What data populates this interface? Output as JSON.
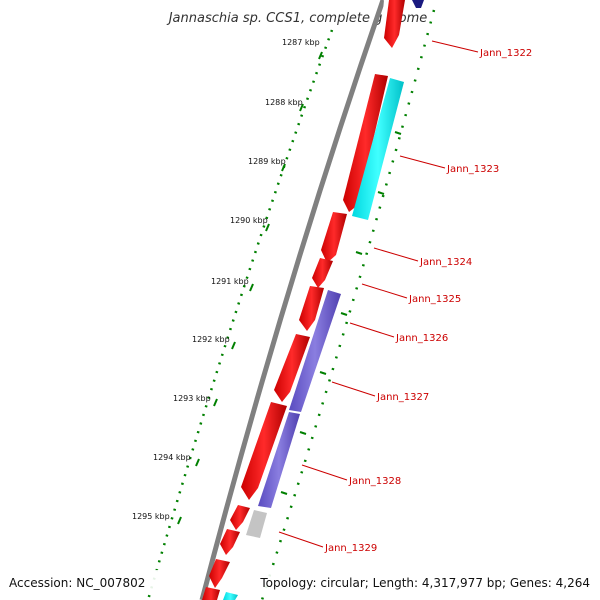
{
  "title": "Jannaschia sp. CCS1, complete genome",
  "footer": {
    "accession": "Accession: NC_007802",
    "topology": "Topology: circular; Length: 4,317,977 bp; Genes: 4,264"
  },
  "kbp_ticks": [
    "1287 kbp",
    "1288 kbp",
    "1289 kbp",
    "1290 kbp",
    "1291 kbp",
    "1292 kbp",
    "1293 kbp",
    "1294 kbp",
    "1295 kbp"
  ],
  "gene_labels": [
    "Jann_1322",
    "Jann_1323",
    "Jann_1324",
    "Jann_1325",
    "Jann_1326",
    "Jann_1327",
    "Jann_1328",
    "Jann_1329"
  ],
  "colors": {
    "forward_gene": "#ff0000",
    "rna_gene": "#00ffff",
    "reverse_gene": "#7060d0",
    "pseudo_gene": "#c0c0c0",
    "backbone": "#808080",
    "ruler": "#008000",
    "label": "#cc0000"
  }
}
